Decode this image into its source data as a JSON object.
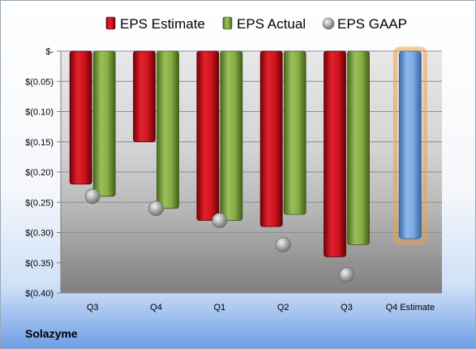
{
  "company": "Solazyme",
  "colors": {
    "estimate": "#c8101e",
    "actual": "#7ea43a",
    "gaap": "#a9a9a9",
    "forecast": "#6f9fdc",
    "forecast_glow": "#f0a040"
  },
  "chart_data": {
    "type": "bar",
    "title": "",
    "xlabel": "",
    "ylabel": "",
    "ylim": [
      -0.4,
      0
    ],
    "yticks": [
      0,
      -0.05,
      -0.1,
      -0.15,
      -0.2,
      -0.25,
      -0.3,
      -0.35,
      -0.4
    ],
    "ytick_labels": [
      "$-",
      "$(0.05)",
      "$(0.10)",
      "$(0.15)",
      "$(0.20)",
      "$(0.25)",
      "$(0.30)",
      "$(0.35)",
      "$(0.40)"
    ],
    "categories": [
      "Q3",
      "Q4",
      "Q1",
      "Q2",
      "Q3",
      "Q4 Estimate"
    ],
    "legend_position": "top",
    "grid": true,
    "series": [
      {
        "name": "EPS Estimate",
        "mark": "bar",
        "values": [
          -0.22,
          -0.15,
          -0.28,
          -0.29,
          -0.34,
          -0.31
        ]
      },
      {
        "name": "EPS Actual",
        "mark": "bar",
        "values": [
          -0.24,
          -0.26,
          -0.28,
          -0.27,
          -0.32,
          null
        ]
      },
      {
        "name": "EPS GAAP",
        "mark": "point",
        "values": [
          -0.24,
          -0.26,
          -0.28,
          -0.32,
          -0.37,
          null
        ]
      }
    ]
  }
}
